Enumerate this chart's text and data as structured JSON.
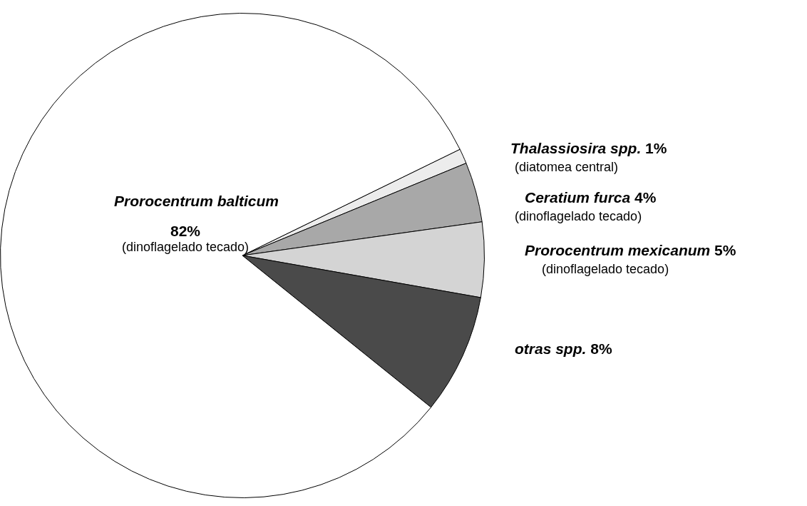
{
  "chart_data": {
    "type": "pie",
    "categories": [
      "Thalassiosira spp.",
      "Ceratium furca",
      "Prorocentrum mexicanum",
      "otras spp.",
      "Prorocentrum balticum"
    ],
    "values": [
      1,
      4,
      5,
      8,
      82
    ],
    "value_labels": [
      "1%",
      "4%",
      "5%",
      "8%",
      "82%"
    ],
    "colors": [
      "#ececec",
      "#a8a8a8",
      "#d4d4d4",
      "#4a4a4a",
      "#ffffff"
    ],
    "annotations": [
      "(diatomea central)",
      "(dinoflagelado tecado)",
      "(dinoflagelado tecado)",
      "(dinoflagelado tecado)"
    ],
    "legend": false
  }
}
